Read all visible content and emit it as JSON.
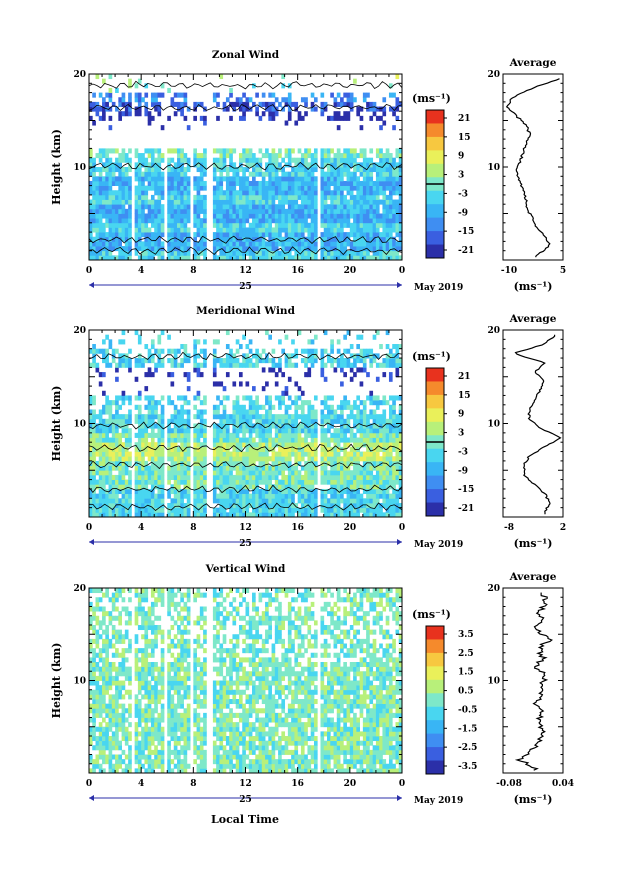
{
  "panels": [
    {
      "id": "zonal",
      "title": "Zonal Wind",
      "ylabel": "Height (km)",
      "colorbar_unit": "(ms⁻¹)",
      "colorbar_ticks": [
        "21",
        "15",
        "9",
        "3",
        "-3",
        "-9",
        "-15",
        "-21"
      ],
      "xticks": [
        "0",
        "4",
        "8",
        "12",
        "16",
        "20",
        "0"
      ],
      "yticks": [
        "20",
        "10"
      ],
      "date_day": "25",
      "date_month": "May 2019",
      "avg_title": "Average",
      "avg_unit": "(ms⁻¹)",
      "avg_xticks": [
        "-10",
        "5"
      ],
      "avg_yticks": [
        "20",
        "10"
      ]
    },
    {
      "id": "meridional",
      "title": "Meridional Wind",
      "ylabel": "Height (km)",
      "colorbar_unit": "(ms⁻¹)",
      "colorbar_ticks": [
        "21",
        "15",
        "9",
        "3",
        "-3",
        "-9",
        "-15",
        "-21"
      ],
      "xticks": [
        "0",
        "4",
        "8",
        "12",
        "16",
        "20",
        "0"
      ],
      "yticks": [
        "20",
        "10"
      ],
      "date_day": "25",
      "date_month": "May 2019",
      "avg_title": "Average",
      "avg_unit": "(ms⁻¹)",
      "avg_xticks": [
        "-8",
        "2"
      ],
      "avg_yticks": [
        "20",
        "10"
      ]
    },
    {
      "id": "vertical",
      "title": "Vertical Wind",
      "ylabel": "Height (km)",
      "colorbar_unit": "(ms⁻¹)",
      "colorbar_ticks": [
        "3.5",
        "2.5",
        "1.5",
        "0.5",
        "-0.5",
        "-1.5",
        "-2.5",
        "-3.5"
      ],
      "xticks": [
        "0",
        "4",
        "8",
        "12",
        "16",
        "20",
        "0"
      ],
      "yticks": [
        "20",
        "10"
      ],
      "date_day": "25",
      "date_month": "May 2019",
      "avg_title": "Average",
      "avg_unit": "(ms⁻¹)",
      "avg_xticks": [
        "-0.08",
        "0.04"
      ],
      "avg_yticks": [
        "20",
        "10"
      ]
    }
  ],
  "xlabel": "Local Time",
  "colors": {
    "scale": [
      "#2b2fa8",
      "#3a5fe0",
      "#3f8ef2",
      "#39b5f5",
      "#49d6f0",
      "#7ee8c9",
      "#b8f07a",
      "#eaf05a",
      "#f7c840",
      "#f58a2c",
      "#e8321e"
    ]
  },
  "chart_data": [
    {
      "type": "heatmap",
      "title": "Zonal Wind",
      "ylabel": "Height (km)",
      "xlabel": "Local Time",
      "xlim": [
        0,
        24
      ],
      "ylim": [
        0,
        20
      ],
      "clim": [
        -21,
        21
      ],
      "profile": {
        "title": "Average",
        "xlim": [
          -13,
          5
        ],
        "heights": [
          1,
          2,
          3,
          4,
          5,
          6,
          7,
          8,
          9,
          10,
          11,
          12,
          13,
          14,
          15,
          16,
          17,
          18,
          19,
          20
        ],
        "values": [
          -3,
          1,
          0,
          -3,
          -4,
          -6,
          -6,
          -7,
          -8,
          -9,
          -8,
          -7,
          -6,
          -5,
          -6,
          -9,
          -12,
          -10,
          -4,
          4
        ]
      }
    },
    {
      "type": "heatmap",
      "title": "Meridional Wind",
      "ylabel": "Height (km)",
      "xlabel": "Local Time",
      "xlim": [
        0,
        24
      ],
      "ylim": [
        0,
        20
      ],
      "clim": [
        -21,
        21
      ],
      "profile": {
        "title": "Average",
        "xlim": [
          -9,
          2.5
        ],
        "heights": [
          1,
          2,
          3,
          4,
          5,
          6,
          7,
          8,
          9,
          10,
          11,
          12,
          13,
          14,
          15,
          16,
          17,
          18,
          19,
          20
        ],
        "values": [
          -1,
          0,
          -1,
          -3,
          -5,
          -5,
          -4,
          -1,
          2,
          -2,
          -4,
          -4,
          -3,
          -2,
          -1,
          -3,
          -1,
          -7,
          -1,
          1
        ]
      }
    },
    {
      "type": "heatmap",
      "title": "Vertical Wind",
      "ylabel": "Height (km)",
      "xlabel": "Local Time",
      "xlim": [
        0,
        24
      ],
      "ylim": [
        0,
        20
      ],
      "clim": [
        -4,
        4
      ],
      "profile": {
        "title": "Average",
        "xlim": [
          -0.1,
          0.05
        ],
        "heights": [
          1,
          2,
          3,
          4,
          5,
          6,
          7,
          8,
          9,
          10,
          11,
          12,
          13,
          14,
          15,
          16,
          17,
          18,
          19,
          20
        ],
        "values": [
          -0.02,
          -0.06,
          -0.03,
          -0.01,
          0.0,
          -0.01,
          0.0,
          -0.02,
          0.0,
          -0.01,
          0.01,
          -0.02,
          0.0,
          -0.01,
          0.02,
          -0.02,
          0.0,
          -0.01,
          0.01,
          0.0
        ]
      }
    }
  ]
}
